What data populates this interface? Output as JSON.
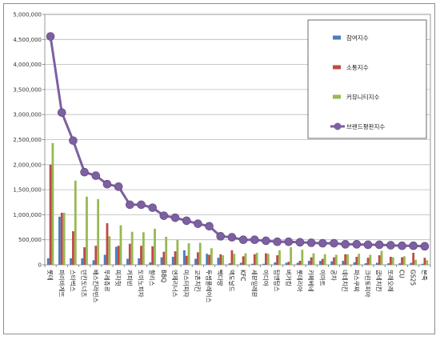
{
  "chart_data": {
    "type": "bar",
    "title": "",
    "xlabel": "",
    "ylabel": "",
    "ylim": [
      0,
      5000000
    ],
    "yticks": [
      0,
      500000,
      1000000,
      1500000,
      2000000,
      2500000,
      3000000,
      3500000,
      4000000,
      4500000,
      5000000
    ],
    "ytick_labels": [
      "0",
      "500,000",
      "1,000,000",
      "1,500,000",
      "2,000,000",
      "2,500,000",
      "3,000,000",
      "3,500,000",
      "4,000,000",
      "4,500,000",
      "5,000,000"
    ],
    "grid": true,
    "legend_position": "top-right",
    "categories": [
      "롯데",
      "파리바게뜨",
      "스타벅스",
      "던킨도너츠",
      "배스킨라빈스",
      "뚜레쥬르",
      "피자헛",
      "커피빈",
      "도미노피자",
      "할리스",
      "BBQ",
      "엔제리너스",
      "미스터피자",
      "교촌치킨",
      "투썸플레이스",
      "빽다방",
      "맥도날드",
      "KFC",
      "세븐일레븐",
      "이디야",
      "탐앤탐스",
      "버거킹",
      "롯데리아",
      "카페베네",
      "이마트",
      "공차",
      "네네치킨",
      "파스쿠찌",
      "크린토피아",
      "굽네치킨",
      "또래오래",
      "CU",
      "GS25",
      "본죽"
    ],
    "series": [
      {
        "name": "참여지수",
        "color": "#4a7ebb",
        "values": [
          130000,
          960000,
          130000,
          130000,
          90000,
          200000,
          360000,
          120000,
          130000,
          50000,
          150000,
          160000,
          290000,
          120000,
          220000,
          140000,
          30000,
          40000,
          20000,
          20000,
          50000,
          40000,
          40000,
          80000,
          80000,
          70000,
          80000,
          50000,
          30000,
          40000,
          30000,
          30000,
          40000,
          20000
        ]
      },
      {
        "name": "소통지수",
        "color": "#be4b48",
        "values": [
          2000000,
          1040000,
          670000,
          350000,
          380000,
          830000,
          380000,
          420000,
          380000,
          370000,
          260000,
          270000,
          180000,
          250000,
          200000,
          210000,
          290000,
          170000,
          210000,
          230000,
          190000,
          60000,
          80000,
          150000,
          120000,
          150000,
          210000,
          160000,
          140000,
          190000,
          160000,
          150000,
          240000,
          140000
        ]
      },
      {
        "name": "커뮤니티지수",
        "color": "#98b954",
        "values": [
          2430000,
          1040000,
          1680000,
          1360000,
          1310000,
          570000,
          790000,
          660000,
          650000,
          720000,
          560000,
          500000,
          430000,
          440000,
          330000,
          190000,
          220000,
          230000,
          240000,
          220000,
          290000,
          350000,
          300000,
          230000,
          210000,
          200000,
          210000,
          220000,
          200000,
          280000,
          150000,
          170000,
          100000,
          90000
        ]
      },
      {
        "name": "브랜드평판지수",
        "color": "#7d60a0",
        "values": [
          4560000,
          3040000,
          2480000,
          1850000,
          1780000,
          1610000,
          1560000,
          1200000,
          1200000,
          1140000,
          980000,
          940000,
          880000,
          820000,
          770000,
          570000,
          550000,
          500000,
          500000,
          480000,
          460000,
          460000,
          450000,
          440000,
          430000,
          430000,
          410000,
          410000,
          400000,
          400000,
          390000,
          380000,
          380000,
          370000
        ]
      }
    ],
    "bar_series": [
      "참여지수",
      "소통지수",
      "커뮤니티지수"
    ],
    "line_series": [
      "브랜드평판지수"
    ]
  }
}
